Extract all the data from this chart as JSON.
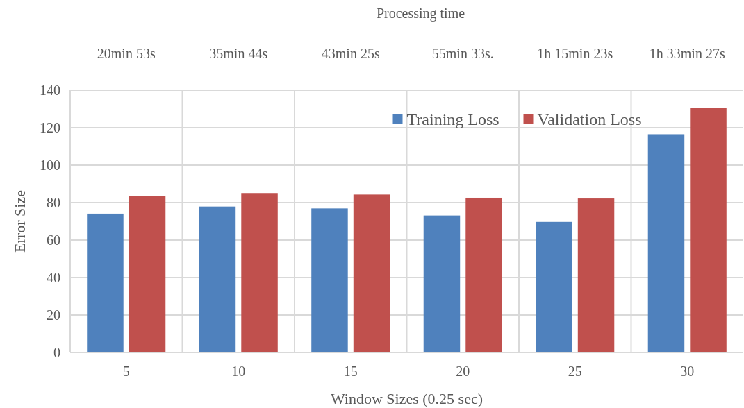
{
  "chart_data": {
    "type": "bar",
    "xlabel": "Window Sizes (0.25 sec)",
    "ylabel": "Error Size",
    "categories": [
      "5",
      "10",
      "15",
      "20",
      "25",
      "30"
    ],
    "series": [
      {
        "name": "Training Loss",
        "color": "#4f81bd",
        "values": [
          74.1,
          77.9,
          76.9,
          73.1,
          69.7,
          116.5
        ]
      },
      {
        "name": "Validation Loss",
        "color": "#c0504d",
        "values": [
          83.7,
          85.1,
          84.3,
          82.6,
          82.2,
          130.6
        ]
      }
    ],
    "ylim": [
      0,
      140
    ],
    "yticks": [
      0,
      20,
      40,
      60,
      80,
      100,
      120,
      140
    ],
    "grid": true,
    "legend": "top",
    "annotations": [
      "Processing time",
      "20min 53s",
      "35min 44s",
      "43min 25s",
      "55min 33s.",
      "1h 15min 23s",
      "1h 33min 27s"
    ]
  }
}
